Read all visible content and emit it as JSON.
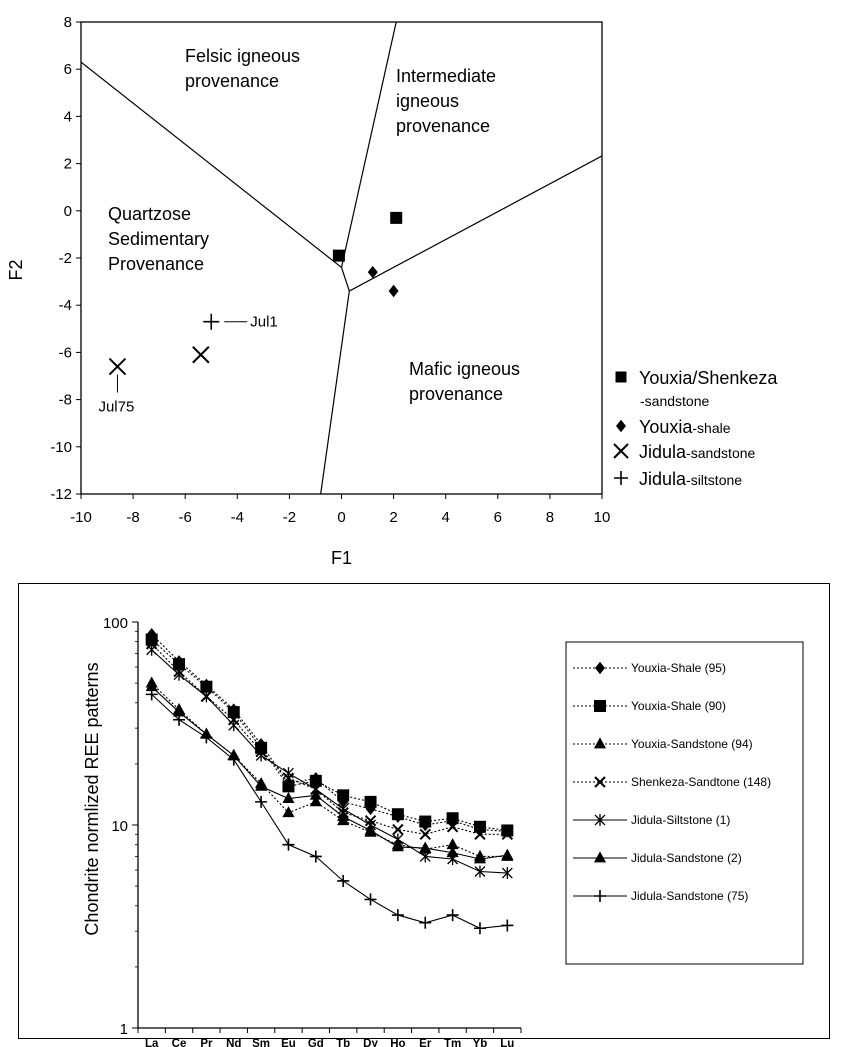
{
  "chart_data": [
    {
      "type": "scatter",
      "title": "",
      "xlabel": "F1",
      "ylabel": "F2",
      "xlim": [
        -10,
        10
      ],
      "ylim": [
        -12,
        8
      ],
      "x_ticks": [
        "-10",
        "-8",
        "-6",
        "-4",
        "-2",
        "0",
        "2",
        "4",
        "6",
        "8",
        "10"
      ],
      "y_ticks": [
        "8",
        "6",
        "4",
        "2",
        "0",
        "-2",
        "-4",
        "-6",
        "-8",
        "-10",
        "-12"
      ],
      "regions": [
        {
          "lines": [
            "Felsic igneous",
            "provenance"
          ]
        },
        {
          "lines": [
            "Intermediate",
            "igneous",
            "provenance"
          ]
        },
        {
          "lines": [
            "Quartzose",
            "Sedimentary",
            "Provenance"
          ]
        },
        {
          "lines": [
            "Mafic igneous",
            "provenance"
          ]
        }
      ],
      "boundaries": [
        [
          [
            -10,
            6.3
          ],
          [
            0.0,
            -2.4
          ]
        ],
        [
          [
            0.0,
            -2.4
          ],
          [
            0.3,
            -3.4
          ]
        ],
        [
          [
            0.0,
            -2.4
          ],
          [
            2.1,
            8.0
          ]
        ],
        [
          [
            0.3,
            -3.4
          ],
          [
            10.3,
            2.5
          ]
        ],
        [
          [
            0.3,
            -3.4
          ],
          [
            -0.8,
            -12.0
          ]
        ]
      ],
      "series": [
        {
          "name": "Youxia/Shenkeza",
          "name_suffix": "-sandstone",
          "marker": "square",
          "points": [
            {
              "x": 2.1,
              "y": -0.3
            },
            {
              "x": -0.1,
              "y": -1.9
            }
          ]
        },
        {
          "name": "Youxia",
          "name_suffix": "-shale",
          "marker": "diamond",
          "points": [
            {
              "x": 1.2,
              "y": -2.6
            },
            {
              "x": 2.0,
              "y": -3.4
            }
          ]
        },
        {
          "name": "Jidula",
          "name_suffix": "-sandstone",
          "marker": "x",
          "points": [
            {
              "x": -8.6,
              "y": -6.6
            },
            {
              "x": -5.4,
              "y": -6.1
            }
          ]
        },
        {
          "name": "Jidula",
          "name_suffix": "-siltstone",
          "marker": "plus",
          "points": [
            {
              "x": -5.0,
              "y": -4.7
            }
          ]
        }
      ],
      "annotations": [
        {
          "text": "Jul1"
        },
        {
          "text": "Jul75"
        }
      ]
    },
    {
      "type": "line",
      "title": "",
      "xlabel": "",
      "ylabel": "Chondrite normlized REE patterns",
      "yscale": "log",
      "ylim": [
        1,
        100
      ],
      "y_ticks": [
        "100",
        "10",
        "1"
      ],
      "categories": [
        "La",
        "Ce",
        "Pr",
        "Nd",
        "Sm",
        "Eu",
        "Gd",
        "Tb",
        "Dy",
        "Ho",
        "Er",
        "Tm",
        "Yb",
        "Lu"
      ],
      "series": [
        {
          "name": "Youxia-Shale (95)",
          "marker": "diamond",
          "dash": "dotted",
          "values": [
            87,
            64,
            49,
            37,
            25,
            16,
            17,
            13,
            12,
            11,
            10,
            10.5,
            9.5,
            9.3
          ]
        },
        {
          "name": "Youxia-Shale (90)",
          "marker": "square",
          "dash": "dotted",
          "values": [
            82,
            62,
            48,
            36,
            24,
            15.5,
            16.5,
            14,
            13,
            11.3,
            10.4,
            10.8,
            9.8,
            9.4
          ]
        },
        {
          "name": "Youxia-Sandstone (94)",
          "marker": "triangle",
          "dash": "dotted",
          "values": [
            50,
            37,
            28,
            22,
            16,
            11.5,
            13,
            10.5,
            9.2,
            8,
            7.6,
            8,
            7,
            7
          ]
        },
        {
          "name": "Shenkeza-Sandtone (148)",
          "marker": "x",
          "dash": "dotted",
          "values": [
            78,
            57,
            43,
            33,
            23,
            17,
            15,
            11.5,
            10.5,
            9.5,
            9,
            9.8,
            9,
            9
          ]
        },
        {
          "name": "Jidula-Siltstone (1)",
          "marker": "star",
          "dash": "solid",
          "values": [
            73,
            55,
            43,
            31,
            22,
            18,
            15,
            12,
            10,
            8.5,
            7,
            6.8,
            5.9,
            5.8
          ]
        },
        {
          "name": "Jidula-Sandstone (2)",
          "marker": "triangle",
          "dash": "solid",
          "values": [
            48,
            36,
            28,
            22,
            15.5,
            13.5,
            14,
            11,
            9.4,
            7.8,
            7.7,
            7.3,
            6.8,
            7.1
          ]
        },
        {
          "name": "Jidula-Sandstone (75)",
          "marker": "plus",
          "dash": "solid",
          "values": [
            44,
            33,
            27,
            21,
            13,
            8,
            7,
            5.3,
            4.3,
            3.6,
            3.3,
            3.6,
            3.1,
            3.2
          ]
        }
      ]
    }
  ]
}
